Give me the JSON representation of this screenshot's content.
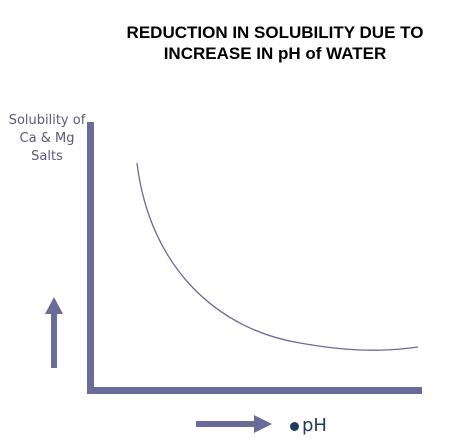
{
  "diagram": {
    "title_lines": [
      "REDUCTION IN SOLUBILITY DUE TO",
      "INCREASE IN pH of WATER"
    ],
    "y_axis_label_lines": [
      "Solubility of",
      "Ca & Mg",
      "Salts"
    ],
    "x_axis_label": "pH",
    "colors": {
      "axis": "#6b6b9a",
      "curve": "#6b6b9a",
      "title": "#000000",
      "label": "#5a5a7a",
      "x_label": "#1f3a5c"
    }
  }
}
